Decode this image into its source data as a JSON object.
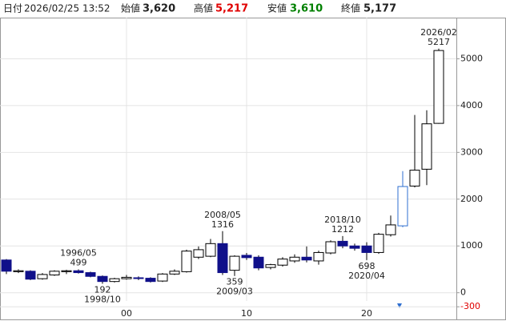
{
  "header": {
    "date_label": "日付",
    "date": "2026/02/25 13:52",
    "open_label": "始値",
    "open": "3,620",
    "high_label": "高値",
    "high": "5,217",
    "low_label": "安値",
    "low": "3,610",
    "close_label": "終値",
    "close": "5,177",
    "high_color": "#e00000",
    "low_color": "#008000"
  },
  "chart_data": {
    "type": "candlestick",
    "categories": [
      null,
      null,
      null,
      null,
      null,
      null,
      null,
      null,
      null,
      null,
      "00",
      null,
      null,
      null,
      null,
      null,
      null,
      null,
      null,
      null,
      "10",
      null,
      null,
      null,
      null,
      null,
      null,
      null,
      null,
      null,
      "20",
      null,
      null,
      null,
      null,
      null,
      null
    ],
    "open": [
      700,
      450,
      460,
      300,
      380,
      450,
      470,
      430,
      350,
      240,
      300,
      320,
      310,
      250,
      400,
      450,
      760,
      780,
      1050,
      480,
      800,
      760,
      540,
      590,
      680,
      760,
      680,
      850,
      1100,
      1000,
      1000,
      860,
      1240,
      1430,
      2280,
      2640,
      3620
    ],
    "high": [
      720,
      500,
      480,
      420,
      480,
      490,
      499,
      450,
      370,
      320,
      380,
      350,
      330,
      420,
      500,
      920,
      990,
      1150,
      1316,
      800,
      850,
      800,
      620,
      760,
      820,
      990,
      900,
      1120,
      1212,
      1050,
      1080,
      1280,
      1650,
      2600,
      3800,
      3900,
      5217
    ],
    "low": [
      400,
      420,
      270,
      280,
      360,
      400,
      410,
      330,
      192,
      220,
      280,
      270,
      220,
      230,
      380,
      430,
      720,
      760,
      380,
      359,
      700,
      480,
      500,
      560,
      640,
      650,
      600,
      820,
      950,
      900,
      698,
      830,
      1200,
      1400,
      2250,
      2300,
      3610
    ],
    "close": [
      460,
      470,
      290,
      390,
      460,
      470,
      430,
      350,
      240,
      300,
      330,
      310,
      240,
      400,
      460,
      890,
      920,
      1050,
      430,
      780,
      750,
      530,
      600,
      720,
      760,
      700,
      860,
      1090,
      1000,
      950,
      860,
      1250,
      1450,
      2270,
      2620,
      3610,
      5177
    ],
    "edge_colors": [
      "#000000",
      "#000000",
      "#000000",
      "#000000",
      "#000000",
      "#000000",
      "#000000",
      "#000000",
      "#000000",
      "#000000",
      "#000000",
      "#000000",
      "#000000",
      "#000000",
      "#000000",
      "#000000",
      "#000000",
      "#000000",
      "#000000",
      "#000000",
      "#000000",
      "#000000",
      "#000000",
      "#000000",
      "#000000",
      "#000000",
      "#000000",
      "#000000",
      "#000000",
      "#000000",
      "#000000",
      "#000000",
      "#000000",
      "#2f6fd0",
      "#000000",
      "#000000",
      "#000000"
    ],
    "up_color": "#ffffff",
    "down_color": "#10108a",
    "ylim": [
      -450,
      5880
    ],
    "yticks": [
      -300,
      0,
      1000,
      2000,
      3000,
      4000,
      5000
    ],
    "negative_tick_color": "#e00000",
    "grid": true,
    "annotations": [
      {
        "label": "1996/05",
        "value": "499"
      },
      {
        "label": "1998/10",
        "value": "192"
      },
      {
        "label": "2008/05",
        "value": "1316"
      },
      {
        "label": "2009/03",
        "value": "359"
      },
      {
        "label": "2018/10",
        "value": "1212"
      },
      {
        "label": "2020/04",
        "value": "698"
      },
      {
        "label": "2026/02",
        "value": "5217"
      }
    ]
  }
}
